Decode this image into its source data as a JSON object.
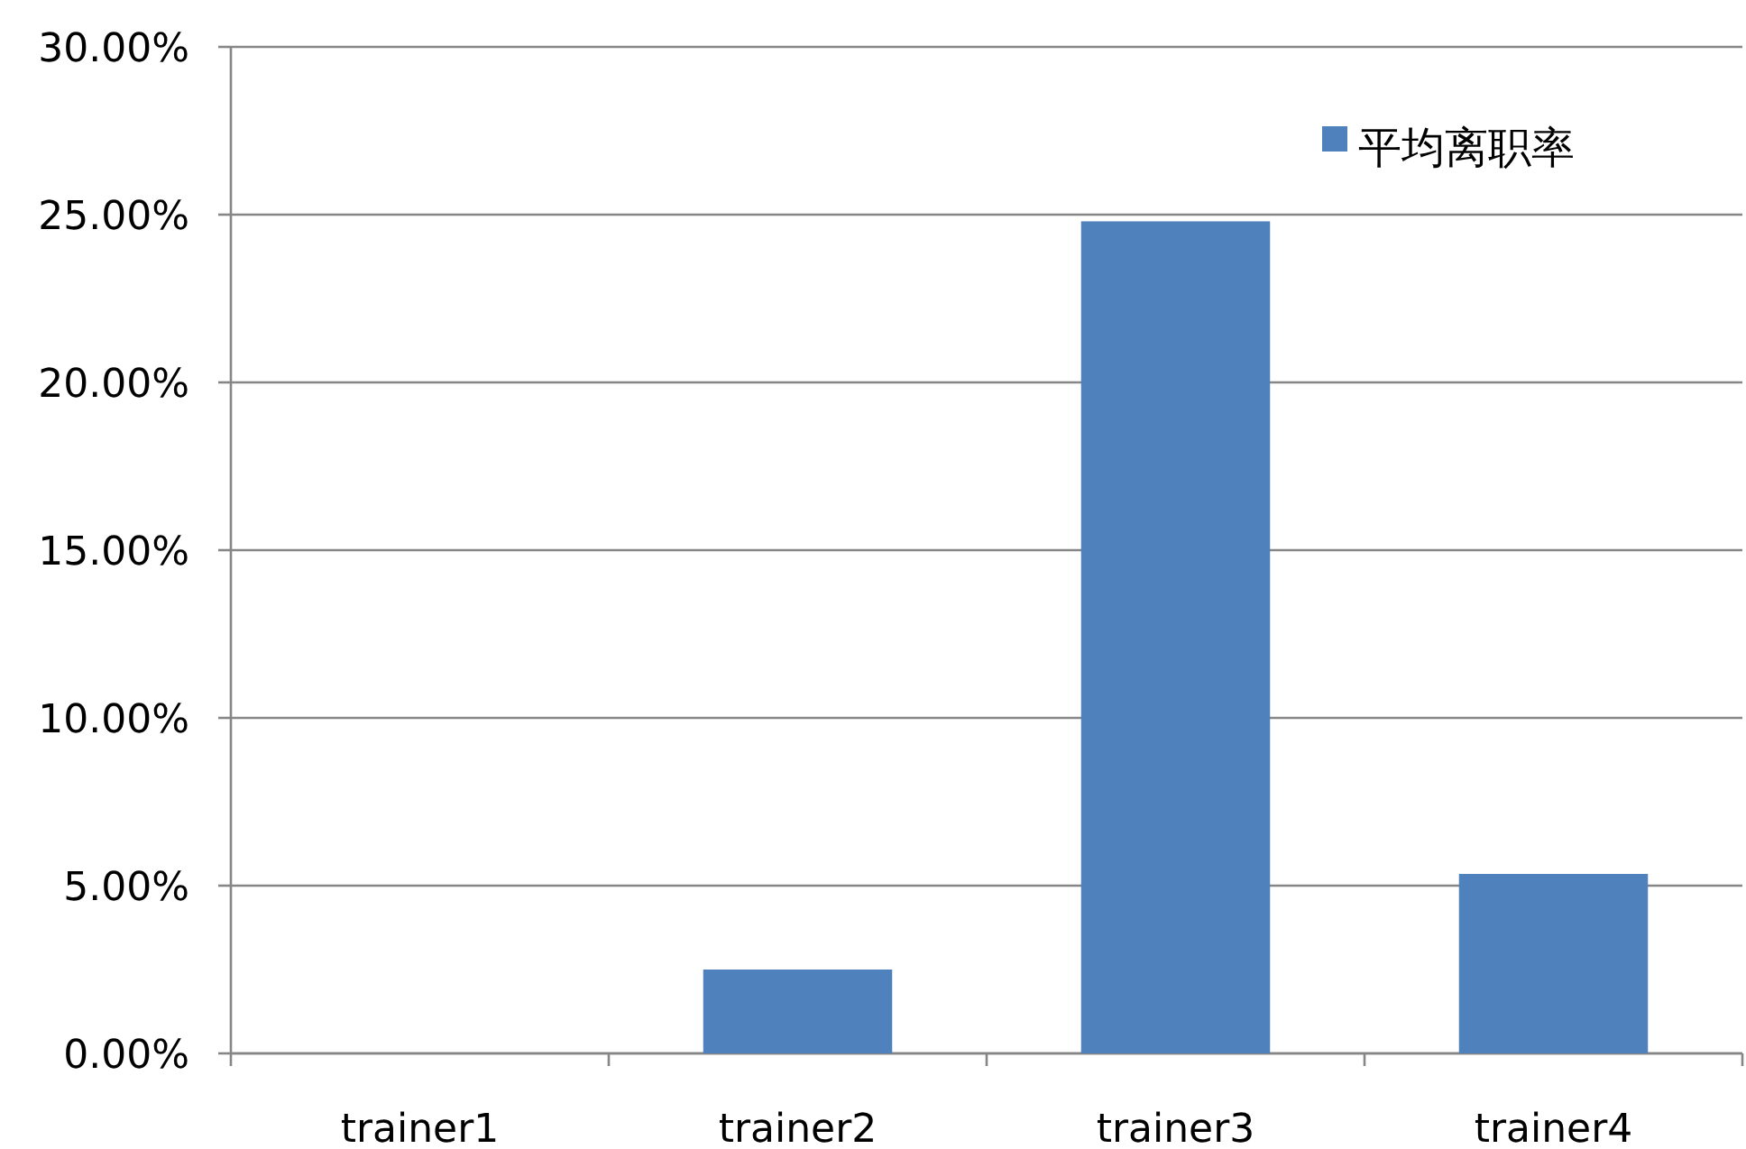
{
  "chart_data": {
    "type": "bar",
    "categories": [
      "trainer1",
      "trainer2",
      "trainer3",
      "trainer4"
    ],
    "series": [
      {
        "name": "平均离职率",
        "color": "#4f81bd",
        "values": [
          0,
          2.5,
          24.8,
          5.35
        ]
      }
    ],
    "ylim": [
      0,
      30
    ],
    "yticks": [
      {
        "value": 0,
        "label": "0.00%"
      },
      {
        "value": 5,
        "label": "5.00%"
      },
      {
        "value": 10,
        "label": "10.00%"
      },
      {
        "value": 15,
        "label": "15.00%"
      },
      {
        "value": 20,
        "label": "20.00%"
      },
      {
        "value": 25,
        "label": "25.00%"
      },
      {
        "value": 30,
        "label": "30.00%"
      }
    ],
    "grid": "y",
    "legend": "top right"
  }
}
